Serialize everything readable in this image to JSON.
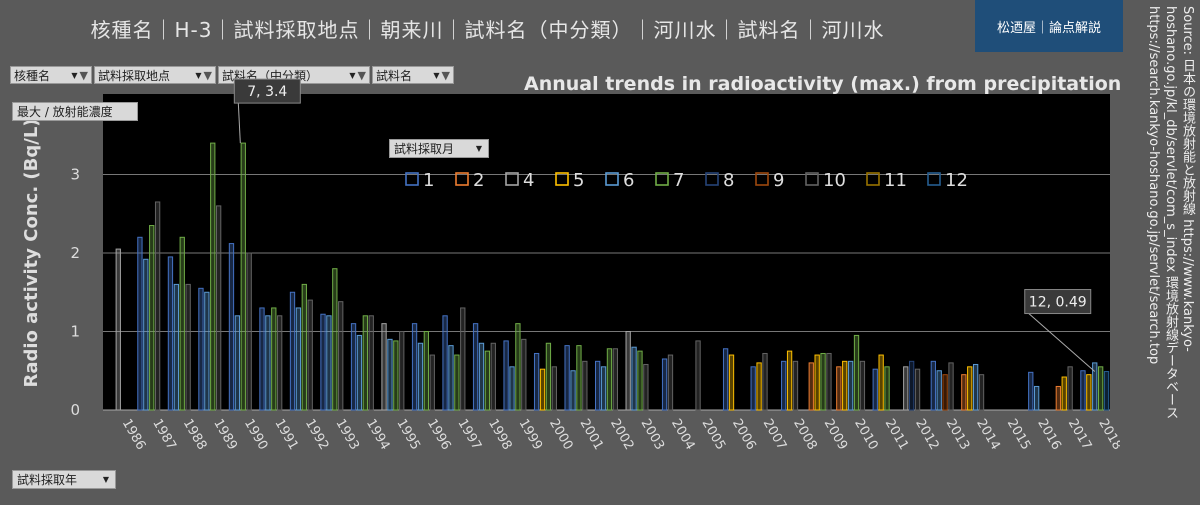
{
  "header": {
    "title": "核種名｜H-3｜試料採取地点｜朝来川｜試料名（中分類）｜河川水｜試料名｜河川水",
    "brand": "松迺屋｜論点解説"
  },
  "source_text": "Source: 日本の環境放射能と放射線 https://www.kankyo-hoshano.go.jp/kl_db/servlet/com_s_index 環境放射線データベース https://search.kankyo-hoshano.go.jp/servlet/search.top",
  "filters": [
    {
      "label": "核種名"
    },
    {
      "label": "試料採取地点"
    },
    {
      "label": "試料名（中分類）"
    },
    {
      "label": "試料名"
    }
  ],
  "measure_label": "最大 / 放射能濃度",
  "month_filter_label": "試料採取月",
  "year_filter_label": "試料採取年",
  "colors": {
    "background": "#5a5a5a",
    "plot_bg": "#000000",
    "month_colors": {
      "1": "#4472c4",
      "2": "#ed7d31",
      "4": "#a5a5a5",
      "5": "#ffc000",
      "6": "#5b9bd5",
      "7": "#70ad47",
      "8": "#264478",
      "9": "#9e480e",
      "10": "#636363",
      "11": "#997300",
      "12": "#255e91"
    }
  },
  "chart_data": {
    "type": "bar",
    "title": "Annual trends in radioactivity (max.) from precipitation",
    "ylabel": "Radio activity Conc. (Bq/L)",
    "xlabel": "",
    "ylim": [
      0,
      4
    ],
    "yticks": [
      0,
      1,
      2,
      3
    ],
    "grid": true,
    "legend_position": "top",
    "categories": [
      "1986",
      "1987",
      "1988",
      "1989",
      "1990",
      "1991",
      "1992",
      "1993",
      "1994",
      "1995",
      "1996",
      "1997",
      "1998",
      "1999",
      "2000",
      "2001",
      "2002",
      "2003",
      "2004",
      "2005",
      "2006",
      "2007",
      "2008",
      "2009",
      "2010",
      "2011",
      "2012",
      "2013",
      "2014",
      "2015",
      "2016",
      "2017",
      "2018"
    ],
    "series": [
      {
        "name": "1",
        "values": [
          null,
          2.2,
          1.95,
          1.55,
          2.12,
          1.3,
          1.5,
          1.22,
          1.1,
          null,
          1.1,
          1.2,
          1.1,
          0.88,
          0.72,
          0.82,
          0.62,
          null,
          0.65,
          null,
          0.78,
          0.55,
          0.62,
          null,
          null,
          0.52,
          null,
          0.62,
          null,
          null,
          0.48,
          null,
          0.5
        ]
      },
      {
        "name": "2",
        "values": [
          null,
          null,
          null,
          null,
          null,
          null,
          null,
          null,
          null,
          null,
          null,
          null,
          null,
          null,
          null,
          null,
          null,
          null,
          null,
          null,
          null,
          null,
          null,
          0.6,
          0.55,
          null,
          null,
          null,
          0.45,
          null,
          null,
          0.3,
          null
        ]
      },
      {
        "name": "4",
        "values": [
          2.05,
          null,
          null,
          null,
          null,
          null,
          null,
          null,
          null,
          1.1,
          null,
          null,
          null,
          null,
          null,
          null,
          null,
          1.0,
          null,
          null,
          null,
          null,
          null,
          null,
          null,
          null,
          0.55,
          null,
          null,
          null,
          null,
          null,
          null
        ]
      },
      {
        "name": "5",
        "values": [
          null,
          null,
          null,
          null,
          null,
          null,
          null,
          null,
          null,
          null,
          null,
          null,
          null,
          null,
          0.52,
          null,
          null,
          null,
          null,
          null,
          0.7,
          0.6,
          0.75,
          0.7,
          0.62,
          0.7,
          null,
          null,
          0.55,
          null,
          null,
          0.42,
          0.45
        ]
      },
      {
        "name": "6",
        "values": [
          null,
          1.92,
          1.6,
          1.5,
          1.2,
          1.2,
          1.3,
          1.2,
          0.95,
          0.9,
          0.85,
          0.82,
          0.85,
          0.55,
          null,
          0.5,
          0.55,
          0.8,
          null,
          null,
          null,
          null,
          null,
          null,
          0.62,
          null,
          null,
          0.5,
          0.58,
          null,
          0.3,
          null,
          0.6
        ]
      },
      {
        "name": "7",
        "values": [
          null,
          2.35,
          2.2,
          3.4,
          3.4,
          1.3,
          1.6,
          1.8,
          1.2,
          0.88,
          1.0,
          0.7,
          0.75,
          1.1,
          0.85,
          0.82,
          0.78,
          0.75,
          null,
          null,
          null,
          null,
          null,
          0.72,
          0.95,
          0.55,
          null,
          null,
          null,
          null,
          null,
          null,
          0.55
        ]
      },
      {
        "name": "8",
        "values": [
          null,
          null,
          null,
          null,
          null,
          null,
          null,
          null,
          null,
          null,
          null,
          null,
          null,
          null,
          null,
          null,
          null,
          null,
          null,
          null,
          null,
          null,
          null,
          null,
          null,
          null,
          0.62,
          null,
          null,
          null,
          null,
          null,
          null
        ]
      },
      {
        "name": "9",
        "values": [
          null,
          null,
          null,
          null,
          null,
          null,
          null,
          null,
          null,
          null,
          null,
          null,
          null,
          null,
          null,
          null,
          null,
          null,
          null,
          null,
          null,
          null,
          null,
          null,
          null,
          null,
          null,
          0.45,
          null,
          null,
          null,
          null,
          null
        ]
      },
      {
        "name": "10",
        "values": [
          null,
          2.65,
          1.6,
          2.6,
          2.0,
          1.2,
          1.4,
          1.38,
          1.2,
          1.0,
          0.7,
          1.3,
          0.85,
          0.9,
          0.55,
          0.62,
          0.78,
          0.58,
          0.7,
          0.88,
          null,
          0.72,
          0.62,
          0.72,
          0.62,
          null,
          0.52,
          0.6,
          0.45,
          null,
          null,
          0.55,
          null
        ]
      },
      {
        "name": "11",
        "values": [
          null,
          null,
          null,
          null,
          null,
          null,
          null,
          null,
          null,
          null,
          null,
          null,
          null,
          null,
          null,
          null,
          null,
          null,
          null,
          null,
          null,
          null,
          null,
          null,
          null,
          null,
          null,
          null,
          null,
          null,
          null,
          null,
          null
        ]
      },
      {
        "name": "12",
        "values": [
          null,
          null,
          null,
          null,
          null,
          null,
          null,
          null,
          null,
          null,
          null,
          null,
          null,
          null,
          null,
          null,
          null,
          null,
          null,
          null,
          null,
          null,
          null,
          null,
          null,
          null,
          null,
          null,
          null,
          null,
          null,
          null,
          0.49
        ]
      }
    ],
    "annotations": [
      {
        "text": "7, 3.4",
        "category": "1990",
        "value": 3.4
      },
      {
        "text": "12, 0.49",
        "category": "2018",
        "value": 0.49
      }
    ]
  }
}
